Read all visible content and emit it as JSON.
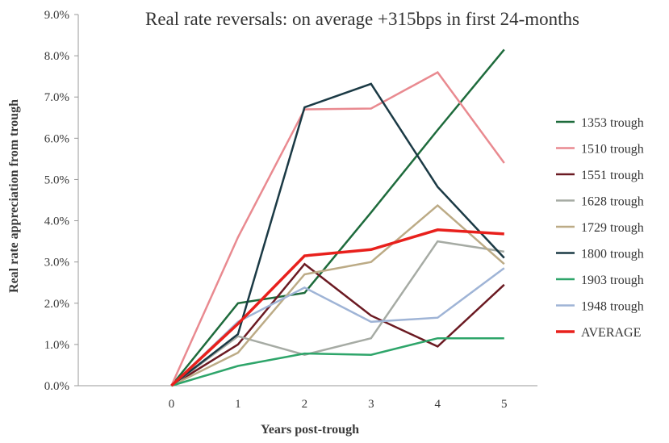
{
  "chart_data": {
    "type": "line",
    "title": "Real rate reversals: on average +315bps in first 24-months",
    "xlabel": "Years post-trough",
    "ylabel": "Real rate appreciation from trough",
    "x": [
      0,
      1,
      2,
      3,
      4,
      5
    ],
    "x_tick_labels": [
      "0",
      "1",
      "2",
      "3",
      "4",
      "5"
    ],
    "xlim": [
      -1.4,
      5.5
    ],
    "ylim": [
      0,
      9
    ],
    "y_tick_labels": [
      "0.0%",
      "1.0%",
      "2.0%",
      "3.0%",
      "4.0%",
      "5.0%",
      "6.0%",
      "7.0%",
      "8.0%",
      "9.0%"
    ],
    "legend_position": "right",
    "series": [
      {
        "name": "1353 trough",
        "color": "#1e6b3c",
        "width": 2.5,
        "values": [
          0,
          2.0,
          2.25,
          4.2,
          6.2,
          8.15
        ]
      },
      {
        "name": "1510 trough",
        "color": "#e98a90",
        "width": 2.5,
        "values": [
          0,
          3.6,
          6.7,
          6.72,
          7.6,
          5.4
        ]
      },
      {
        "name": "1551 trough",
        "color": "#6b1a22",
        "width": 2.5,
        "values": [
          0,
          1.0,
          2.95,
          1.7,
          0.95,
          2.45
        ]
      },
      {
        "name": "1628 trough",
        "color": "#a6aba4",
        "width": 2.5,
        "values": [
          0,
          1.2,
          0.75,
          1.15,
          3.5,
          3.25
        ]
      },
      {
        "name": "1729 trough",
        "color": "#bcab86",
        "width": 2.5,
        "values": [
          0,
          0.8,
          2.7,
          3.0,
          4.37,
          2.95
        ]
      },
      {
        "name": "1800 trough",
        "color": "#1b3a45",
        "width": 2.5,
        "values": [
          0,
          1.25,
          6.75,
          7.32,
          4.82,
          3.1
        ]
      },
      {
        "name": "1903 trough",
        "color": "#2ea56a",
        "width": 2.5,
        "values": [
          0,
          0.48,
          0.78,
          0.75,
          1.15,
          1.15
        ]
      },
      {
        "name": "1948 trough",
        "color": "#9fb4d6",
        "width": 2.5,
        "values": [
          0,
          1.55,
          2.38,
          1.55,
          1.65,
          2.85
        ]
      },
      {
        "name": "AVERAGE",
        "color": "#e8201c",
        "width": 3.5,
        "values": [
          0,
          1.5,
          3.15,
          3.3,
          3.78,
          3.68
        ]
      }
    ]
  }
}
